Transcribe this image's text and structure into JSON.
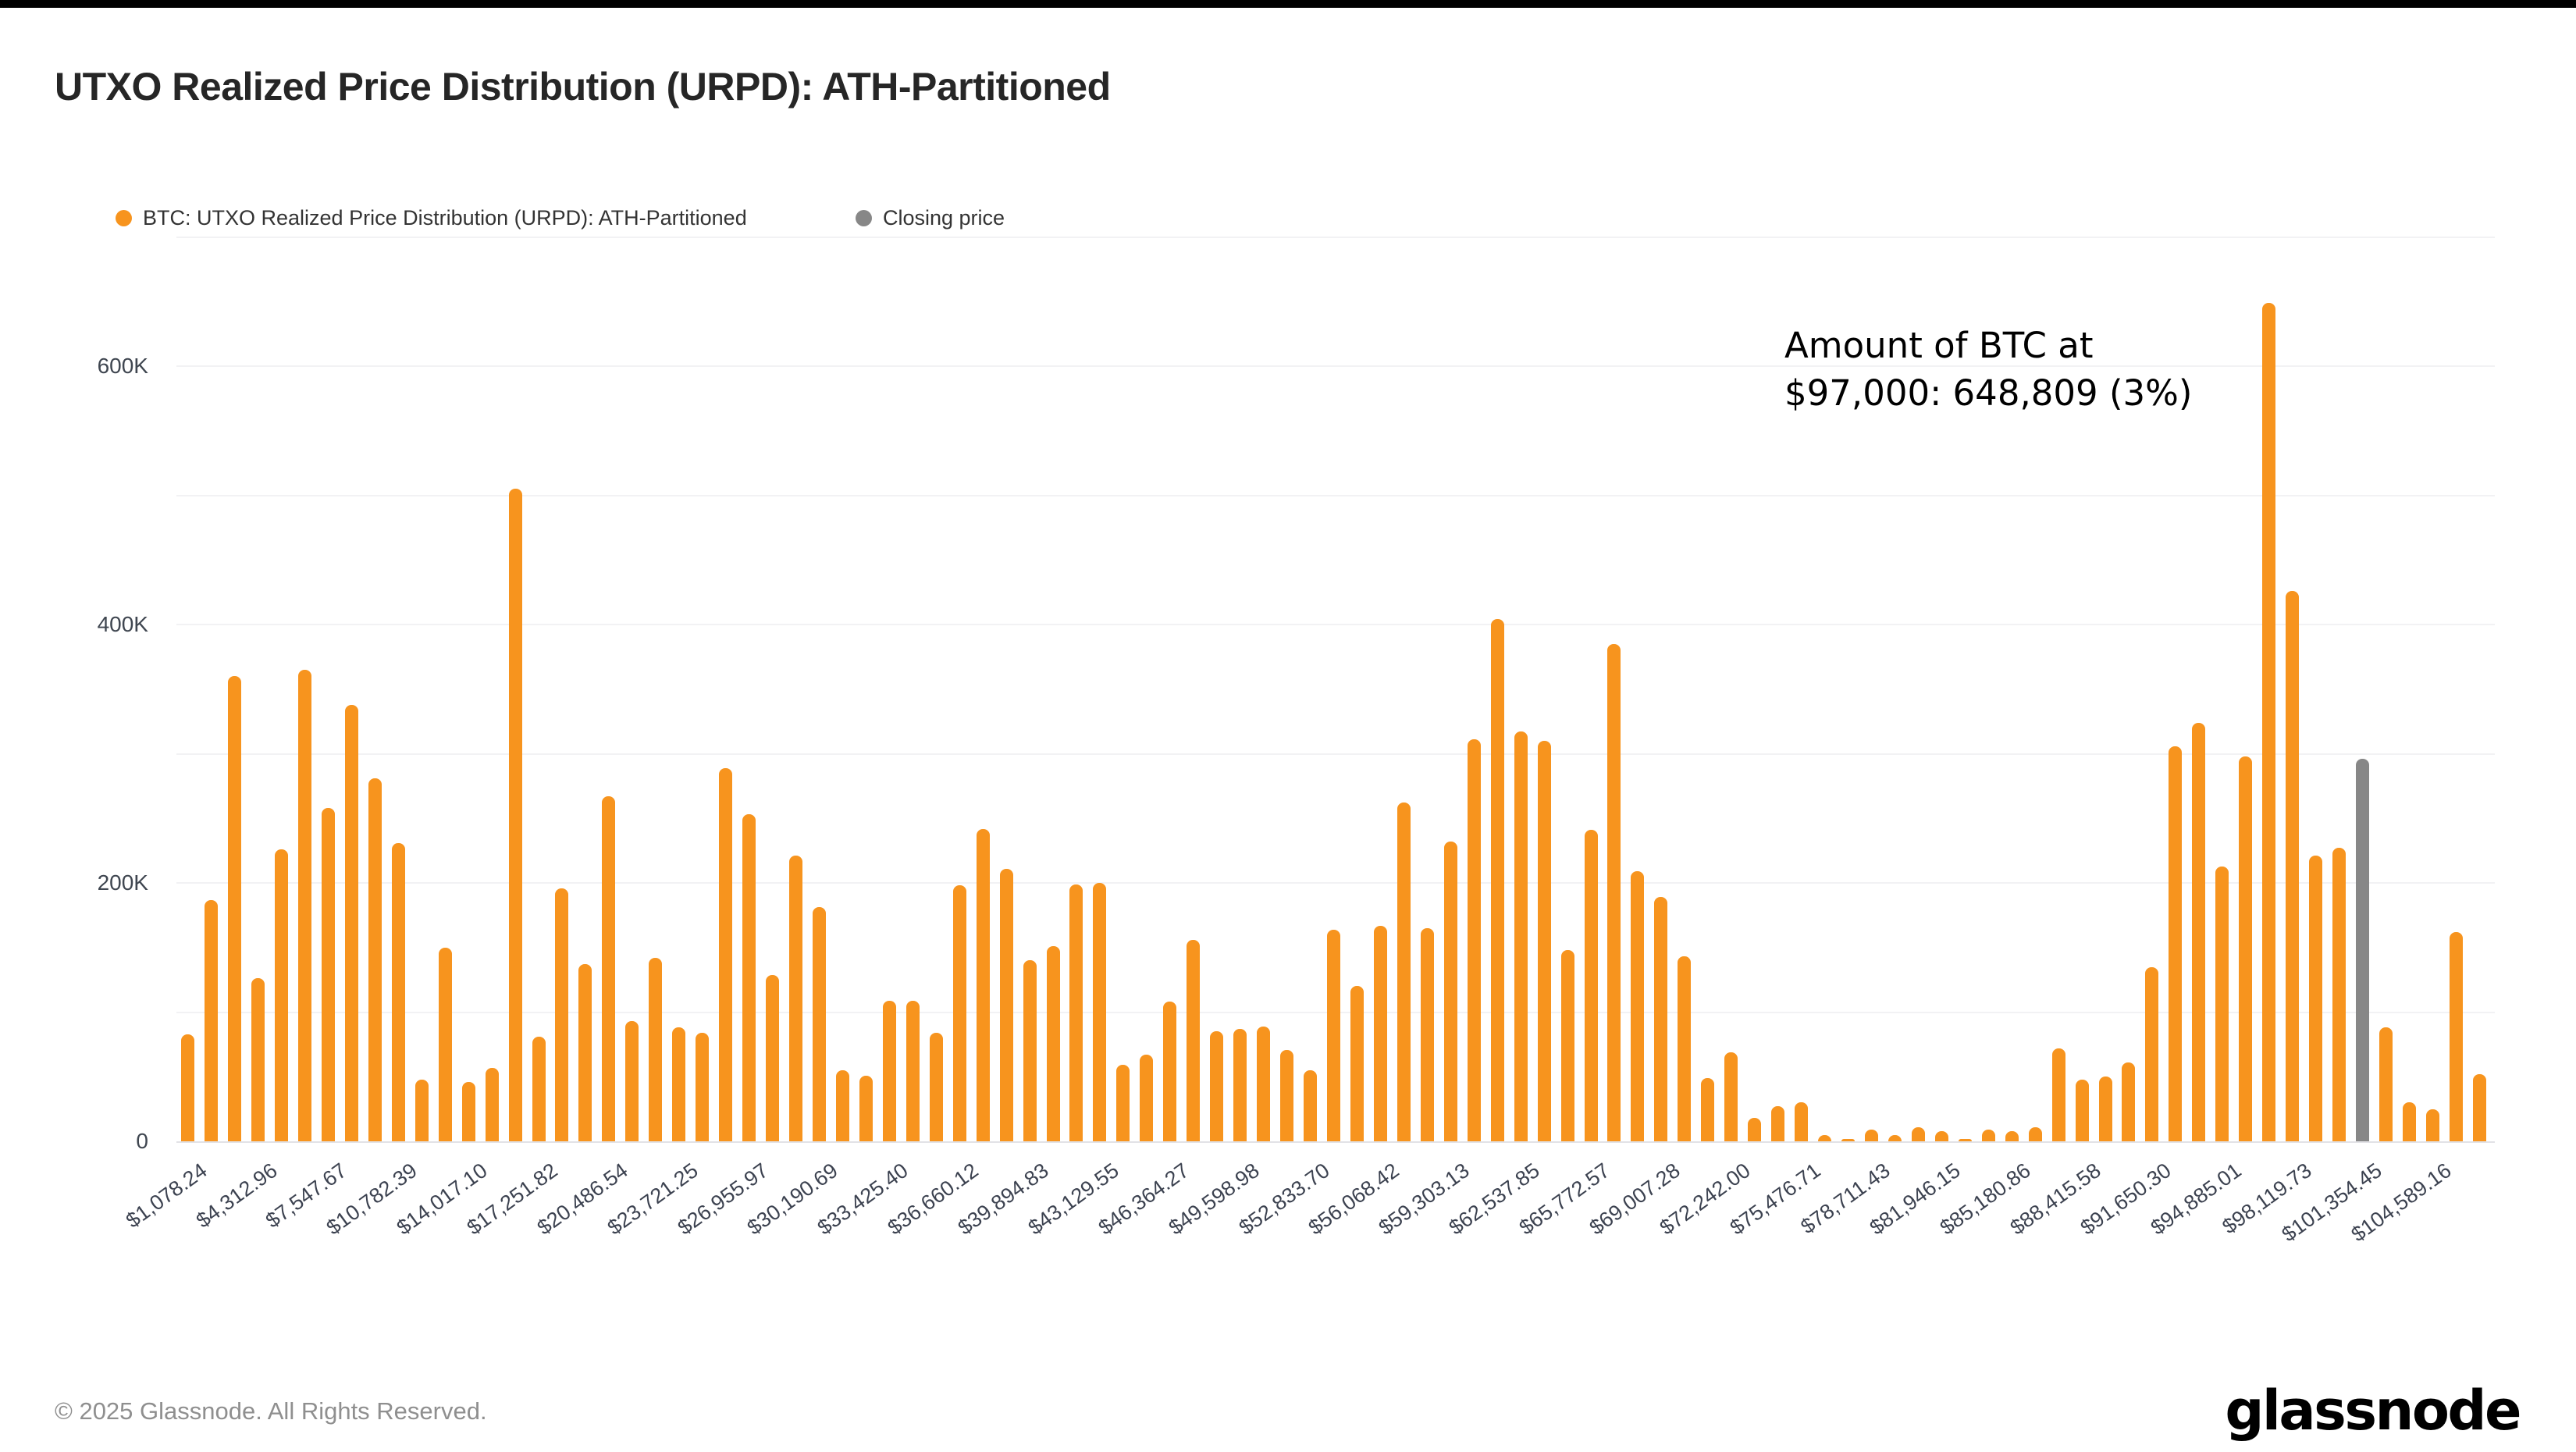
{
  "header": {
    "title": "UTXO Realized Price Distribution (URPD): ATH-Partitioned"
  },
  "legend": {
    "items": [
      {
        "label": "BTC: UTXO Realized Price Distribution (URPD): ATH-Partitioned",
        "color": "#F7941E"
      },
      {
        "label": "Closing price",
        "color": "#878787"
      }
    ]
  },
  "chart_data": {
    "type": "bar",
    "title": "UTXO Realized Price Distribution (URPD): ATH-Partitioned",
    "xlabel": "",
    "ylabel": "",
    "ylim": [
      0,
      700000
    ],
    "grid": true,
    "legend_position": "top-left",
    "y_ticks": [
      {
        "value": 0,
        "label": "0"
      },
      {
        "value": 200000,
        "label": "200K"
      },
      {
        "value": 400000,
        "label": "400K"
      },
      {
        "value": 600000,
        "label": "600K"
      }
    ],
    "gridline_values": [
      100000,
      200000,
      300000,
      400000,
      500000,
      600000,
      700000
    ],
    "x_tick_labels": [
      "$1,078.24",
      "$4,312.96",
      "$7,547.67",
      "$10,782.39",
      "$14,017.10",
      "$17,251.82",
      "$20,486.54",
      "$23,721.25",
      "$26,955.97",
      "$30,190.69",
      "$33,425.40",
      "$36,660.12",
      "$39,894.83",
      "$43,129.55",
      "$46,364.27",
      "$49,598.98",
      "$52,833.70",
      "$56,068.42",
      "$59,303.13",
      "$62,537.85",
      "$65,772.57",
      "$69,007.28",
      "$72,242.00",
      "$75,476.71",
      "$78,711.43",
      "$81,946.15",
      "$85,180.86",
      "$88,415.58",
      "$91,650.30",
      "$94,885.01",
      "$98,119.73",
      "$101,354.45",
      "$104,589.16"
    ],
    "label_every_n_bars": 3,
    "values": [
      83000,
      187000,
      360000,
      126000,
      226000,
      365000,
      258000,
      338000,
      281000,
      231000,
      48000,
      150000,
      46000,
      57000,
      505000,
      81000,
      196000,
      137000,
      267000,
      93000,
      142000,
      88000,
      84000,
      289000,
      253000,
      129000,
      221000,
      181000,
      55000,
      51000,
      109000,
      109000,
      84000,
      198000,
      242000,
      211000,
      140000,
      151000,
      199000,
      200000,
      59000,
      67000,
      108000,
      156000,
      85000,
      87000,
      89000,
      71000,
      55000,
      164000,
      120000,
      167000,
      262000,
      165000,
      232000,
      311000,
      404000,
      317000,
      310000,
      148000,
      241000,
      385000,
      209000,
      189000,
      143000,
      49000,
      69000,
      18000,
      27000,
      30000,
      5000,
      2000,
      9000,
      5000,
      11000,
      8000,
      2000,
      9000,
      8000,
      11000,
      72000,
      48000,
      50000,
      61000,
      135000,
      306000,
      324000,
      213000,
      298000,
      648809,
      426000,
      221000,
      227000,
      296000,
      88000,
      30000,
      25000,
      162000,
      52000
    ],
    "closing_price_bar_index": 93,
    "bar_color": "#F7941E",
    "closing_bar_color": "#878787",
    "annotation": {
      "line1": "Amount of BTC at",
      "line2": "$97,000: 648,809 (3%)",
      "price": "$97,000",
      "amount": "648,809",
      "percent": "3%"
    }
  },
  "footer": {
    "copyright": "© 2025 Glassnode. All Rights Reserved.",
    "logo_text": "glassnode"
  }
}
